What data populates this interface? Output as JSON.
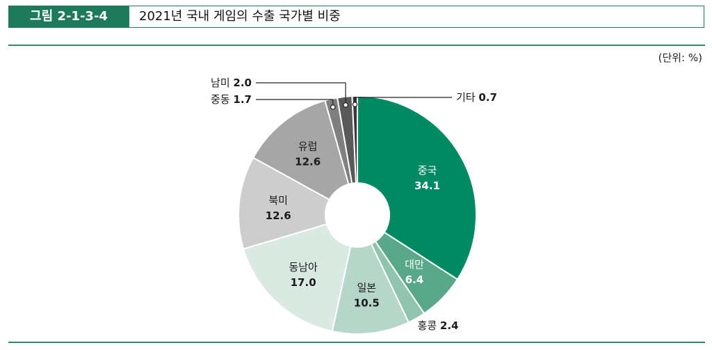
{
  "header": {
    "figure_number": "그림 2-1-3-4",
    "title": "2021년 국내 게임의 수출 국가별 비중"
  },
  "unit_label": "(단위: %)",
  "chart_data": {
    "type": "pie",
    "title": "2021년 국내 게임의 수출 국가별 비중",
    "unit": "%",
    "slices": [
      {
        "label": "중국",
        "value": 34.1,
        "color": "#008a63",
        "text_color": "#ffffff",
        "placement": "inside"
      },
      {
        "label": "대만",
        "value": 6.4,
        "color": "#5aa88a",
        "text_color": "#ffffff",
        "placement": "inside"
      },
      {
        "label": "홍콩",
        "value": 2.4,
        "color": "#90c4ae",
        "text_color": "#1a1a1a",
        "placement": "outside-bottom"
      },
      {
        "label": "일본",
        "value": 10.5,
        "color": "#b6d6c9",
        "text_color": "#1a1a1a",
        "placement": "inside"
      },
      {
        "label": "동남아",
        "value": 17.0,
        "color": "#dae9e2",
        "text_color": "#1a1a1a",
        "placement": "inside"
      },
      {
        "label": "북미",
        "value": 12.6,
        "color": "#cdcdcd",
        "text_color": "#1a1a1a",
        "placement": "inside"
      },
      {
        "label": "유럽",
        "value": 12.6,
        "color": "#a6a6a6",
        "text_color": "#1a1a1a",
        "placement": "inside"
      },
      {
        "label": "중동",
        "value": 1.7,
        "color": "#7f7f7f",
        "text_color": "#1a1a1a",
        "placement": "callout-left"
      },
      {
        "label": "남미",
        "value": 2.0,
        "color": "#595959",
        "text_color": "#1a1a1a",
        "placement": "callout-left"
      },
      {
        "label": "기타",
        "value": 0.7,
        "color": "#3a3a3a",
        "text_color": "#1a1a1a",
        "placement": "callout-right"
      }
    ]
  }
}
